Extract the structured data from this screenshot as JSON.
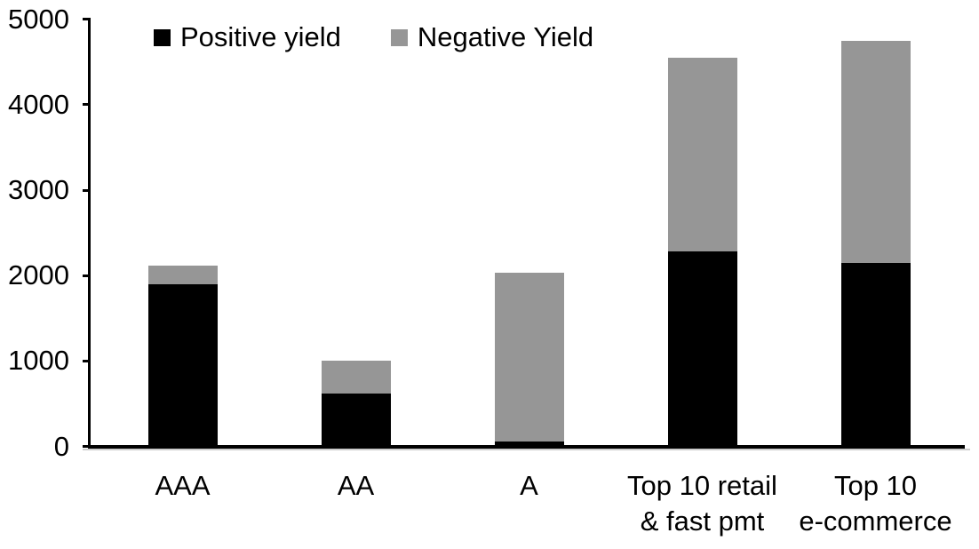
{
  "chart_data": {
    "type": "bar",
    "stacked": true,
    "title": "",
    "categories": [
      "AAA",
      "AA",
      "A",
      "Top 10 retail\n& fast pmt",
      "Top 10\ne-commerce"
    ],
    "series": [
      {
        "name": "Positive yield",
        "color": "#000000",
        "values": [
          1900,
          620,
          55,
          2280,
          2150
        ]
      },
      {
        "name": "Negative Yield",
        "color": "#969696",
        "values": [
          220,
          385,
          1975,
          2270,
          2600
        ]
      }
    ],
    "ylim": [
      0,
      5000
    ],
    "yticks": [
      "0",
      "1000",
      "2000",
      "3000",
      "4000",
      "5000"
    ],
    "grid": false,
    "legend_position": "top-left",
    "axis_color": "#000000",
    "background_color": "#ffffff"
  }
}
